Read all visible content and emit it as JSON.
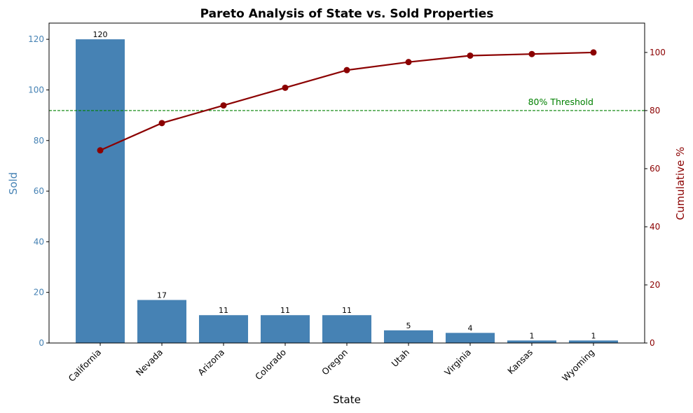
{
  "chart_data": {
    "type": "bar",
    "title": "Pareto Analysis of State vs. Sold Properties",
    "xlabel": "State",
    "ylabel": "Sold",
    "y2label": "Cumulative %",
    "categories": [
      "California",
      "Nevada",
      "Arizona",
      "Colorado",
      "Oregon",
      "Utah",
      "Virginia",
      "Kansas",
      "Wyoming"
    ],
    "series": [
      {
        "type": "bar",
        "values": [
          120,
          17,
          11,
          11,
          11,
          5,
          4,
          1,
          1
        ],
        "color": "#4682b4",
        "axis": "left"
      },
      {
        "type": "line",
        "values": [
          66.3,
          75.69,
          81.77,
          87.85,
          93.92,
          96.69,
          98.9,
          99.45,
          100.0
        ],
        "color": "#8b0000",
        "axis": "right"
      }
    ],
    "data_labels": [
      "120",
      "17",
      "11",
      "11",
      "11",
      "5",
      "4",
      "1",
      "1"
    ],
    "ylim": [
      0,
      126.4
    ],
    "y2lim": [
      0,
      110.1
    ],
    "yticks": [
      0,
      20,
      40,
      60,
      80,
      100,
      120
    ],
    "y2ticks": [
      0,
      20,
      40,
      60,
      80,
      100
    ],
    "threshold": {
      "value": 80,
      "label": "80% Threshold",
      "color": "#008000"
    },
    "left_axis_color": "#4682b4",
    "right_axis_color": "#8b0000",
    "grid": false
  }
}
